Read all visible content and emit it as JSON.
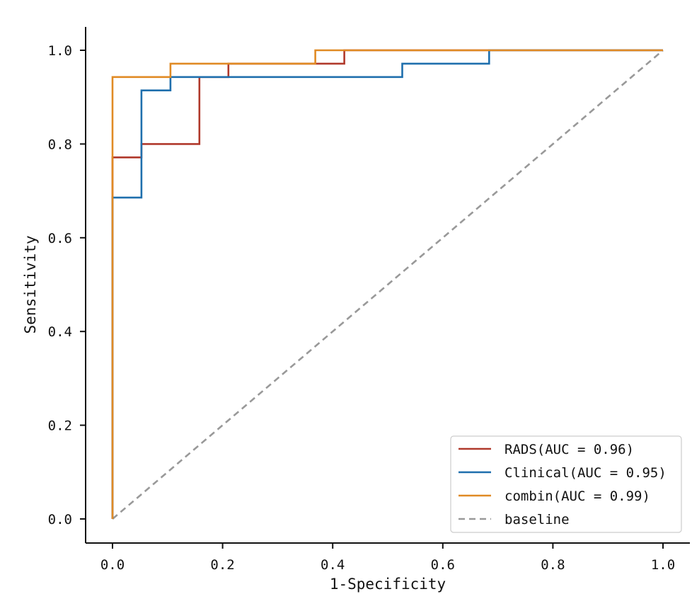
{
  "chart_data": {
    "type": "line",
    "xlabel": "1-Specificity",
    "ylabel": "Sensitivity",
    "xlim": [
      0,
      1
    ],
    "ylim": [
      0,
      1
    ],
    "xticks": [
      0.0,
      0.2,
      0.4,
      0.6,
      0.8,
      1.0
    ],
    "yticks": [
      0.0,
      0.2,
      0.4,
      0.6,
      0.8,
      1.0
    ],
    "xtick_labels": [
      "0.0",
      "0.2",
      "0.4",
      "0.6",
      "0.8",
      "1.0"
    ],
    "ytick_labels": [
      "0.0",
      "0.2",
      "0.4",
      "0.6",
      "0.8",
      "1.0"
    ],
    "grid": false,
    "legend_position": "lower-right",
    "series": [
      {
        "name": "RADS(AUC = 0.96)",
        "color": "#b0392b",
        "dash": false,
        "x": [
          0,
          0,
          0.0526,
          0.0526,
          0.1579,
          0.1579,
          0.2105,
          0.2105,
          0.4211,
          0.4211,
          1
        ],
        "y": [
          0,
          0.7714,
          0.7714,
          0.8,
          0.8,
          0.9429,
          0.9429,
          0.9714,
          0.9714,
          1,
          1
        ]
      },
      {
        "name": "Clinical(AUC = 0.95)",
        "color": "#1f6fad",
        "dash": false,
        "x": [
          0,
          0,
          0.0526,
          0.0526,
          0.1053,
          0.1053,
          0.5263,
          0.5263,
          0.6842,
          0.6842,
          1
        ],
        "y": [
          0,
          0.6857,
          0.6857,
          0.9143,
          0.9143,
          0.9429,
          0.9429,
          0.9714,
          0.9714,
          1,
          1
        ]
      },
      {
        "name": "combin(AUC = 0.99)",
        "color": "#e08a24",
        "dash": false,
        "x": [
          0,
          0,
          0.1053,
          0.1053,
          0.3684,
          0.3684,
          1
        ],
        "y": [
          0,
          0.9429,
          0.9429,
          0.9714,
          0.9714,
          1,
          1
        ]
      },
      {
        "name": "baseline",
        "color": "#999999",
        "dash": true,
        "x": [
          0,
          1
        ],
        "y": [
          0,
          1
        ]
      }
    ]
  }
}
